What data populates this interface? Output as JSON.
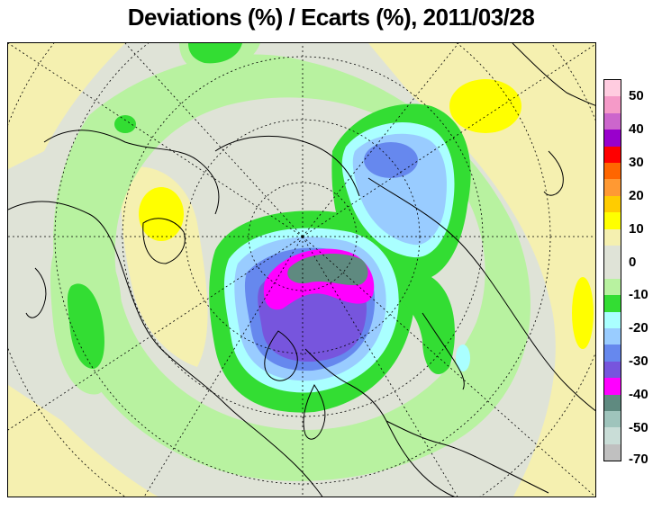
{
  "title": "Deviations (%) / Ecarts (%), 2011/03/28",
  "legend": {
    "labels": [
      "50",
      "40",
      "30",
      "20",
      "10",
      "0",
      "-10",
      "-20",
      "-30",
      "-40",
      "-50",
      "-70"
    ],
    "colors": [
      "#ffcce0",
      "#f59ac8",
      "#cc66cc",
      "#9900cc",
      "#ff0000",
      "#ff6600",
      "#ff9933",
      "#ffcc00",
      "#ffff00",
      "#f5f0b0",
      "#dfe3d7",
      "#b8f2a0",
      "#33dd33",
      "#aaffff",
      "#99ccff",
      "#6688ee",
      "#7755dd",
      "#ff00ff",
      "#5f8a80",
      "#9fc4bc",
      "#c9ddd7",
      "#c0c0c0"
    ]
  },
  "colors": {
    "neutral": "#dfe3d7",
    "light_green": "#b8f2a0",
    "green": "#33dd33",
    "cyan": "#aaffff",
    "light_blue": "#99ccff",
    "blue": "#6688ee",
    "purple": "#7755dd",
    "magenta": "#ff00ff",
    "teal": "#5f8a80",
    "light_yellow": "#f5f0b0",
    "yellow": "#ffff00"
  }
}
